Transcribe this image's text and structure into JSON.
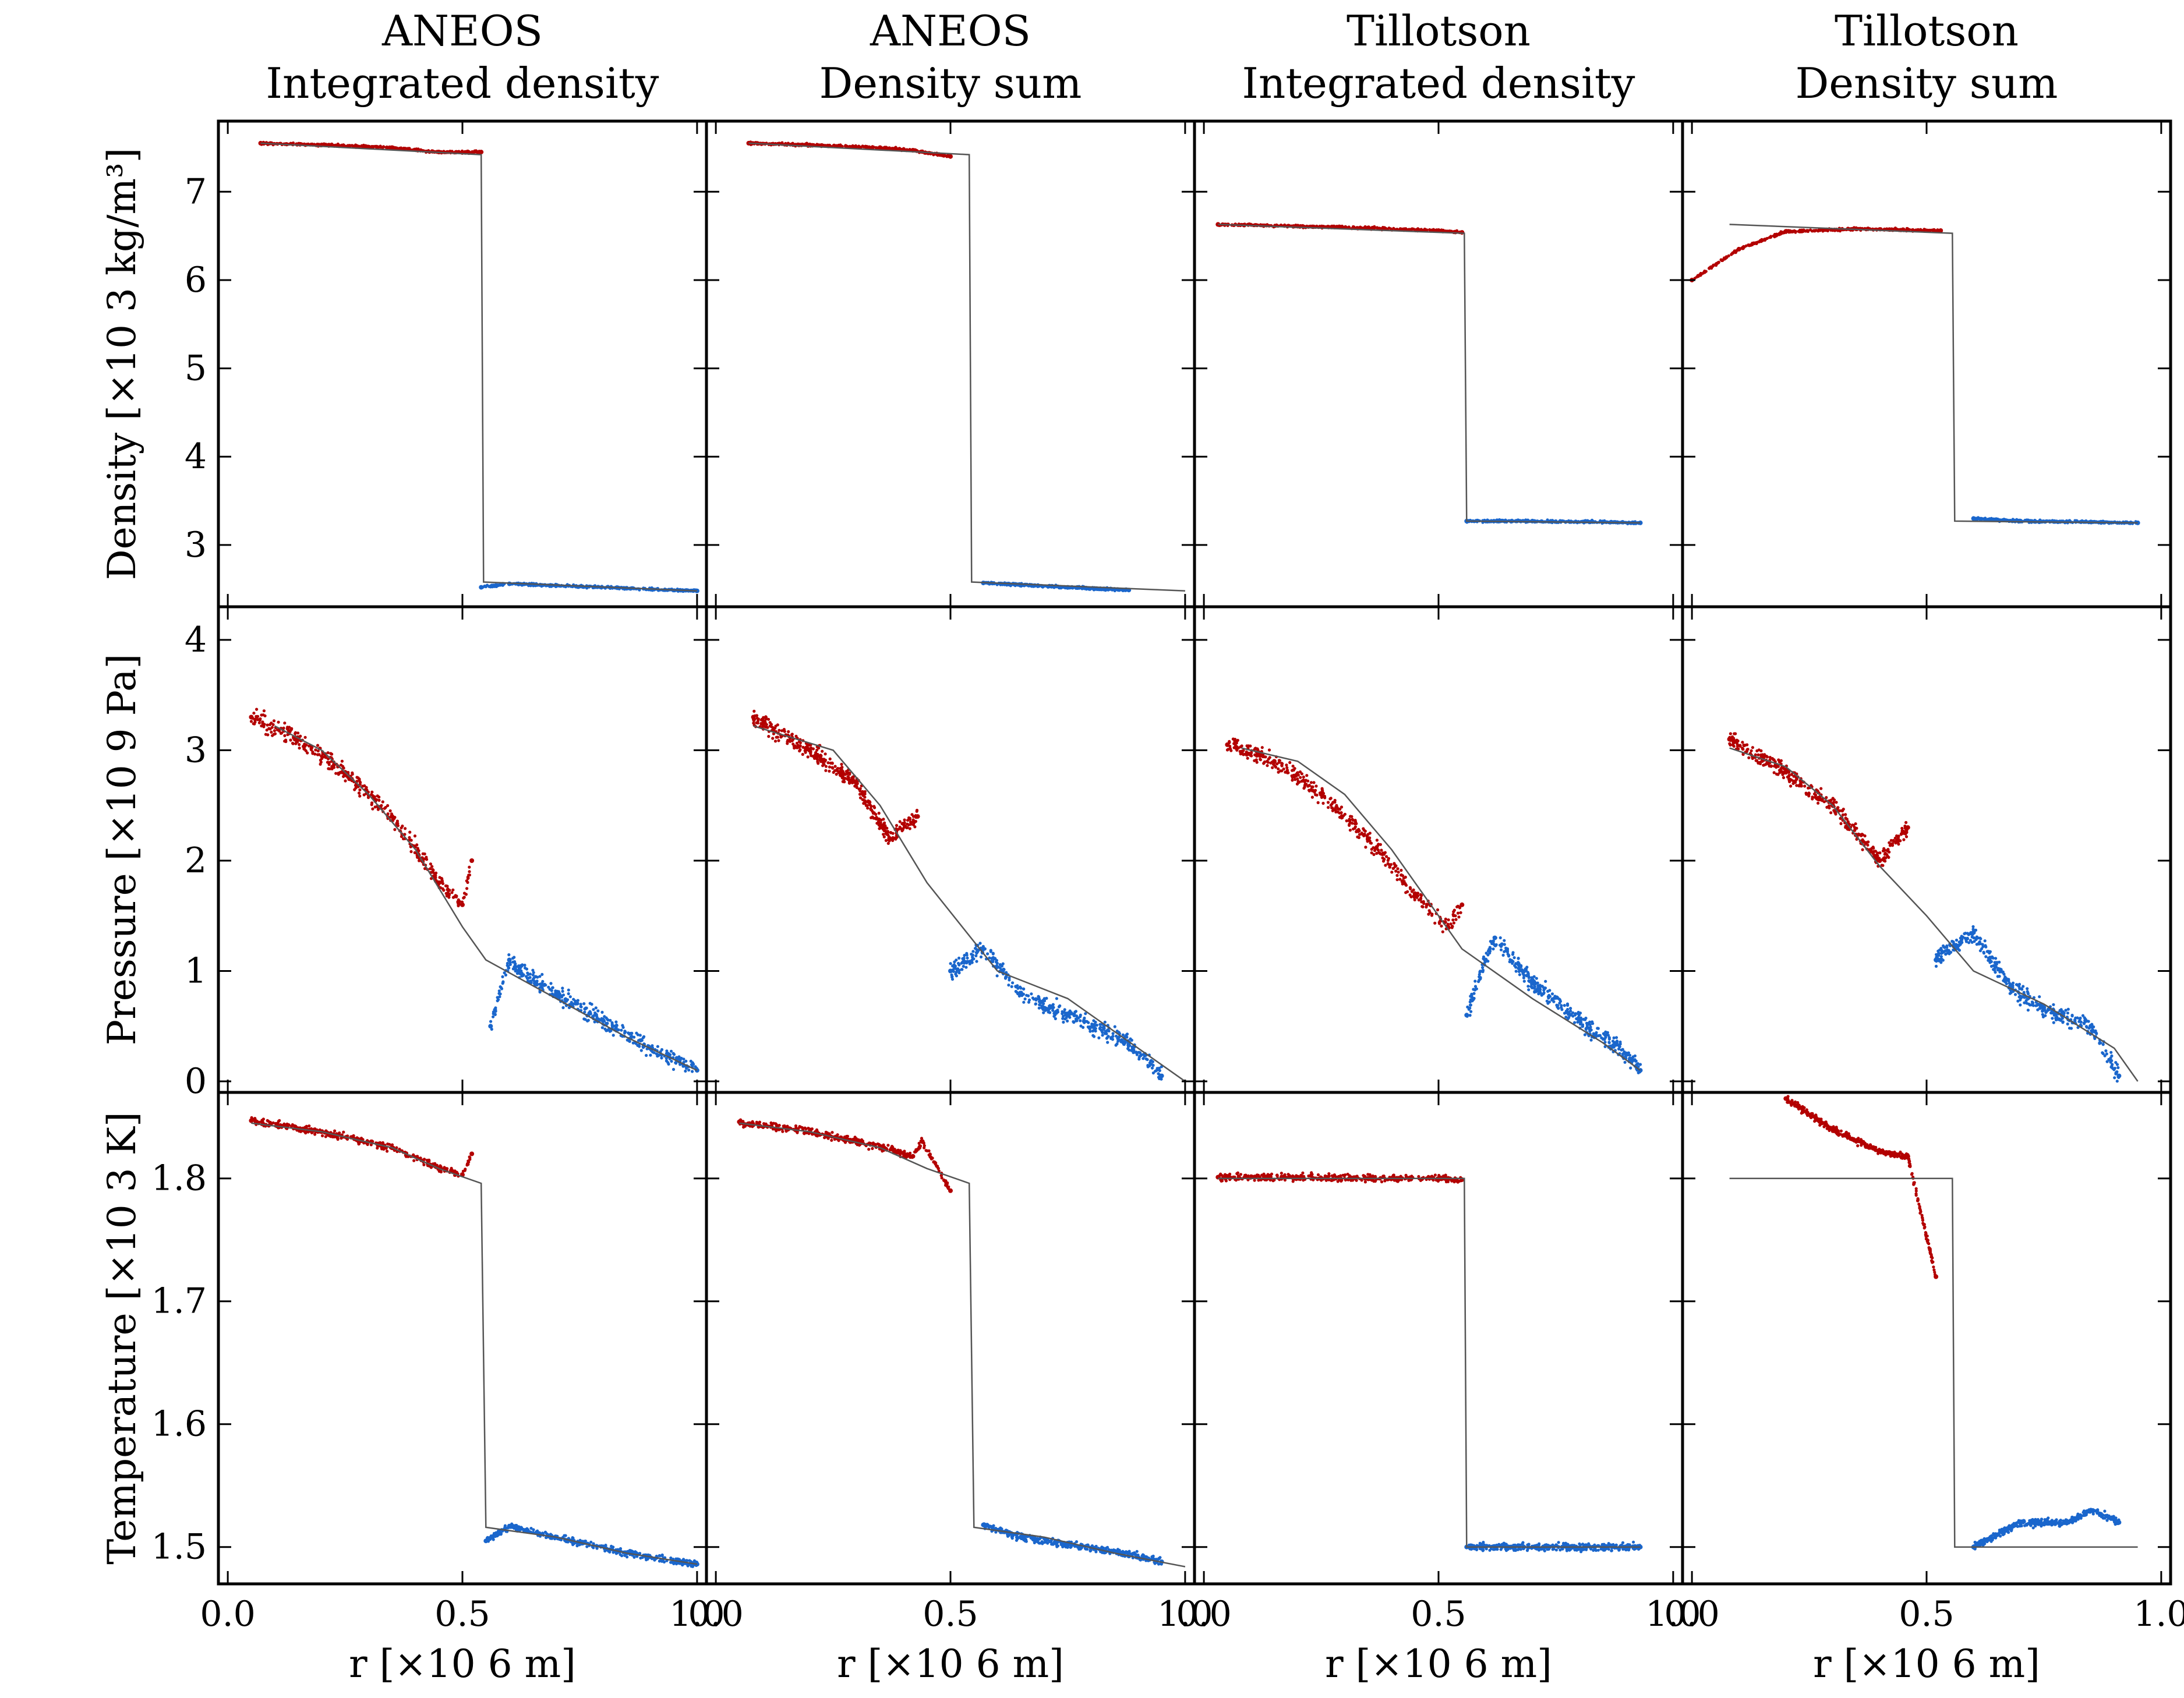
{
  "figure": {
    "columns": [
      {
        "title_lines": [
          "ANEOS",
          "Integrated density"
        ]
      },
      {
        "title_lines": [
          "ANEOS",
          "Density sum"
        ]
      },
      {
        "title_lines": [
          "Tillotson",
          "Integrated density"
        ]
      },
      {
        "title_lines": [
          "Tillotson",
          "Density sum"
        ]
      }
    ],
    "rows": [
      {
        "ylabel": "Density [×10 3  kg/m³]",
        "ylim": [
          2.3,
          7.8
        ],
        "yticks": [
          "3",
          "4",
          "5",
          "6",
          "7"
        ],
        "ytick_values": [
          3,
          4,
          5,
          6,
          7
        ]
      },
      {
        "ylabel": "Pressure [×10 9  Pa]",
        "ylim": [
          -0.1,
          4.3
        ],
        "yticks": [
          "0",
          "1",
          "2",
          "3",
          "4"
        ],
        "ytick_values": [
          0,
          1,
          2,
          3,
          4
        ]
      },
      {
        "ylabel": "Temperature [×10 3  K]",
        "ylim": [
          1.47,
          1.87
        ],
        "yticks": [
          "1.5",
          "1.6",
          "1.7",
          "1.8"
        ],
        "ytick_values": [
          1.5,
          1.6,
          1.7,
          1.8
        ]
      }
    ],
    "xlabel": "r [×10 6  m]",
    "xlim": [
      -0.02,
      1.02
    ],
    "xticks": [
      "0.0",
      "0.5",
      "1.0"
    ],
    "xtick_values": [
      0.0,
      0.5,
      1.0
    ],
    "colors": {
      "inner": "#b30000",
      "outer": "#1a66cc",
      "analytic": "#555555",
      "axes": "#000000"
    }
  },
  "chart_data": [
    {
      "type": "scatter",
      "title": "ANEOS Integrated density",
      "ylabel": "Density [×10 3  kg/m³]",
      "xlabel": "r [×10 6  m]",
      "analytic": {
        "x": [
          0.07,
          0.54,
          0.545,
          1.0
        ],
        "y": [
          7.55,
          7.42,
          2.58,
          2.48
        ]
      },
      "inner": {
        "x": [
          0.07,
          0.2,
          0.35,
          0.45,
          0.54
        ],
        "y": [
          7.55,
          7.53,
          7.5,
          7.45,
          7.45
        ]
      },
      "outer": {
        "x": [
          0.54,
          0.6,
          0.7,
          0.85,
          1.0
        ],
        "y": [
          2.52,
          2.56,
          2.54,
          2.51,
          2.48
        ]
      }
    },
    {
      "type": "scatter",
      "title": "ANEOS Density sum",
      "ylabel": "Density [×10 3  kg/m³]",
      "xlabel": "r [×10 6  m]",
      "analytic": {
        "x": [
          0.07,
          0.54,
          0.545,
          1.0
        ],
        "y": [
          7.55,
          7.42,
          2.58,
          2.48
        ]
      },
      "inner": {
        "x": [
          0.07,
          0.2,
          0.35,
          0.42,
          0.5
        ],
        "y": [
          7.55,
          7.53,
          7.5,
          7.47,
          7.4
        ]
      },
      "outer": {
        "x": [
          0.57,
          0.65,
          0.75,
          0.88
        ],
        "y": [
          2.57,
          2.55,
          2.52,
          2.49
        ]
      }
    },
    {
      "type": "scatter",
      "title": "Tillotson Integrated density",
      "ylabel": "Density [×10 3  kg/m³]",
      "xlabel": "r [×10 6  m]",
      "analytic": {
        "x": [
          0.03,
          0.555,
          0.56,
          0.93
        ],
        "y": [
          6.63,
          6.53,
          3.27,
          3.25
        ]
      },
      "inner": {
        "x": [
          0.03,
          0.2,
          0.35,
          0.5,
          0.55
        ],
        "y": [
          6.63,
          6.61,
          6.59,
          6.56,
          6.54
        ]
      },
      "outer": {
        "x": [
          0.56,
          0.7,
          0.85,
          0.93
        ],
        "y": [
          3.27,
          3.27,
          3.26,
          3.25
        ]
      }
    },
    {
      "type": "scatter",
      "title": "Tillotson Density sum",
      "ylabel": "Density [×10 3  kg/m³]",
      "xlabel": "r [×10 6  m]",
      "analytic": {
        "x": [
          0.08,
          0.555,
          0.56,
          0.95
        ],
        "y": [
          6.63,
          6.53,
          3.27,
          3.25
        ]
      },
      "inner": {
        "x": [
          0.0,
          0.1,
          0.2,
          0.35,
          0.45,
          0.53
        ],
        "y": [
          6.0,
          6.35,
          6.55,
          6.58,
          6.57,
          6.56
        ]
      },
      "outer": {
        "x": [
          0.6,
          0.7,
          0.85,
          0.95
        ],
        "y": [
          3.3,
          3.27,
          3.26,
          3.25
        ]
      }
    },
    {
      "type": "scatter",
      "title": "ANEOS Integrated density",
      "ylabel": "Pressure [×10 9  Pa]",
      "xlabel": "r [×10 6  m]",
      "analytic": {
        "x": [
          0.1,
          0.2,
          0.3,
          0.4,
          0.5,
          0.55,
          0.7,
          0.85,
          1.0
        ],
        "y": [
          3.22,
          3.0,
          2.6,
          2.1,
          1.4,
          1.1,
          0.75,
          0.4,
          0.1
        ]
      },
      "inner": {
        "x": [
          0.05,
          0.15,
          0.25,
          0.35,
          0.45,
          0.5,
          0.52
        ],
        "y": [
          3.3,
          3.1,
          2.8,
          2.4,
          1.8,
          1.6,
          2.0
        ]
      },
      "outer": {
        "x": [
          0.56,
          0.6,
          0.62,
          0.7,
          0.8,
          0.9,
          1.0
        ],
        "y": [
          0.5,
          1.1,
          1.0,
          0.8,
          0.55,
          0.3,
          0.1
        ]
      }
    },
    {
      "type": "scatter",
      "title": "ANEOS Density sum",
      "ylabel": "Pressure [×10 9  Pa]",
      "xlabel": "r [×10 6  m]",
      "analytic": {
        "x": [
          0.08,
          0.25,
          0.35,
          0.45,
          0.6,
          0.75,
          1.0
        ],
        "y": [
          3.22,
          3.0,
          2.5,
          1.8,
          1.0,
          0.75,
          0.0
        ]
      },
      "inner": {
        "x": [
          0.08,
          0.2,
          0.3,
          0.37,
          0.43
        ],
        "y": [
          3.3,
          3.0,
          2.7,
          2.2,
          2.4
        ]
      },
      "outer": {
        "x": [
          0.5,
          0.57,
          0.65,
          0.75,
          0.88,
          0.95
        ],
        "y": [
          1.0,
          1.2,
          0.8,
          0.6,
          0.35,
          0.05
        ]
      }
    },
    {
      "type": "scatter",
      "title": "Tillotson Integrated density",
      "ylabel": "Pressure [×10 9  Pa]",
      "xlabel": "r [×10 6  m]",
      "analytic": {
        "x": [
          0.08,
          0.2,
          0.3,
          0.4,
          0.5,
          0.55,
          0.7,
          0.85,
          0.93
        ],
        "y": [
          3.02,
          2.9,
          2.6,
          2.1,
          1.5,
          1.2,
          0.75,
          0.35,
          0.1
        ]
      },
      "inner": {
        "x": [
          0.05,
          0.15,
          0.25,
          0.35,
          0.45,
          0.52,
          0.55
        ],
        "y": [
          3.05,
          2.9,
          2.6,
          2.2,
          1.7,
          1.4,
          1.6
        ]
      },
      "outer": {
        "x": [
          0.56,
          0.6,
          0.62,
          0.7,
          0.8,
          0.9,
          0.93
        ],
        "y": [
          0.6,
          1.1,
          1.3,
          0.9,
          0.55,
          0.25,
          0.1
        ]
      }
    },
    {
      "type": "scatter",
      "title": "Tillotson Density sum",
      "ylabel": "Pressure [×10 9  Pa]",
      "xlabel": "r [×10 6  m]",
      "analytic": {
        "x": [
          0.08,
          0.2,
          0.3,
          0.4,
          0.5,
          0.6,
          0.75,
          0.9,
          0.95
        ],
        "y": [
          3.02,
          2.85,
          2.5,
          1.95,
          1.5,
          1.0,
          0.7,
          0.3,
          0.0
        ]
      },
      "inner": {
        "x": [
          0.08,
          0.2,
          0.3,
          0.4,
          0.46
        ],
        "y": [
          3.1,
          2.8,
          2.5,
          2.0,
          2.3
        ]
      },
      "outer": {
        "x": [
          0.52,
          0.6,
          0.68,
          0.75,
          0.85,
          0.91
        ],
        "y": [
          1.1,
          1.35,
          0.85,
          0.65,
          0.5,
          0.05
        ]
      }
    },
    {
      "type": "scatter",
      "title": "ANEOS Integrated density",
      "ylabel": "Temperature [×10 3  K]",
      "xlabel": "r [×10 6  m]",
      "analytic": {
        "x": [
          0.05,
          0.2,
          0.35,
          0.45,
          0.54,
          0.55,
          0.7,
          0.85,
          1.0
        ],
        "y": [
          1.845,
          1.838,
          1.825,
          1.808,
          1.796,
          1.516,
          1.508,
          1.495,
          1.486
        ]
      },
      "inner": {
        "x": [
          0.05,
          0.2,
          0.35,
          0.45,
          0.5,
          0.52
        ],
        "y": [
          1.847,
          1.838,
          1.825,
          1.808,
          1.803,
          1.82
        ]
      },
      "outer": {
        "x": [
          0.55,
          0.6,
          0.7,
          0.85,
          1.0
        ],
        "y": [
          1.505,
          1.517,
          1.508,
          1.495,
          1.486
        ]
      }
    },
    {
      "type": "scatter",
      "title": "ANEOS Density sum",
      "ylabel": "Temperature [×10 3  K]",
      "xlabel": "r [×10 6  m]",
      "analytic": {
        "x": [
          0.05,
          0.2,
          0.35,
          0.45,
          0.54,
          0.55,
          0.7,
          0.85,
          1.0
        ],
        "y": [
          1.845,
          1.838,
          1.825,
          1.808,
          1.796,
          1.516,
          1.508,
          1.495,
          1.484
        ]
      },
      "inner": {
        "x": [
          0.05,
          0.2,
          0.35,
          0.42,
          0.44,
          0.5
        ],
        "y": [
          1.846,
          1.838,
          1.826,
          1.818,
          1.83,
          1.79
        ]
      },
      "outer": {
        "x": [
          0.57,
          0.65,
          0.75,
          0.87,
          0.95
        ],
        "y": [
          1.518,
          1.508,
          1.502,
          1.495,
          1.488
        ]
      }
    },
    {
      "type": "scatter",
      "title": "Tillotson Integrated density",
      "ylabel": "Temperature [×10 3  K]",
      "xlabel": "r [×10 6  m]",
      "analytic": {
        "x": [
          0.03,
          0.555,
          0.56,
          0.93
        ],
        "y": [
          1.8,
          1.8,
          1.5,
          1.5
        ]
      },
      "inner": {
        "x": [
          0.03,
          0.2,
          0.35,
          0.5,
          0.55
        ],
        "y": [
          1.801,
          1.801,
          1.8,
          1.8,
          1.799
        ]
      },
      "outer": {
        "x": [
          0.56,
          0.7,
          0.85,
          0.93
        ],
        "y": [
          1.5,
          1.5,
          1.5,
          1.5
        ]
      }
    },
    {
      "type": "scatter",
      "title": "Tillotson Density sum",
      "ylabel": "Temperature [×10 3  K]",
      "xlabel": "r [×10 6  m]",
      "analytic": {
        "x": [
          0.08,
          0.555,
          0.56,
          0.95
        ],
        "y": [
          1.8,
          1.8,
          1.5,
          1.5
        ]
      },
      "inner": {
        "x": [
          0.2,
          0.3,
          0.4,
          0.46,
          0.52
        ],
        "y": [
          1.865,
          1.84,
          1.822,
          1.818,
          1.72
        ]
      },
      "outer": {
        "x": [
          0.6,
          0.65,
          0.7,
          0.8,
          0.85,
          0.91
        ],
        "y": [
          1.5,
          1.51,
          1.52,
          1.52,
          1.53,
          1.52
        ]
      }
    }
  ]
}
